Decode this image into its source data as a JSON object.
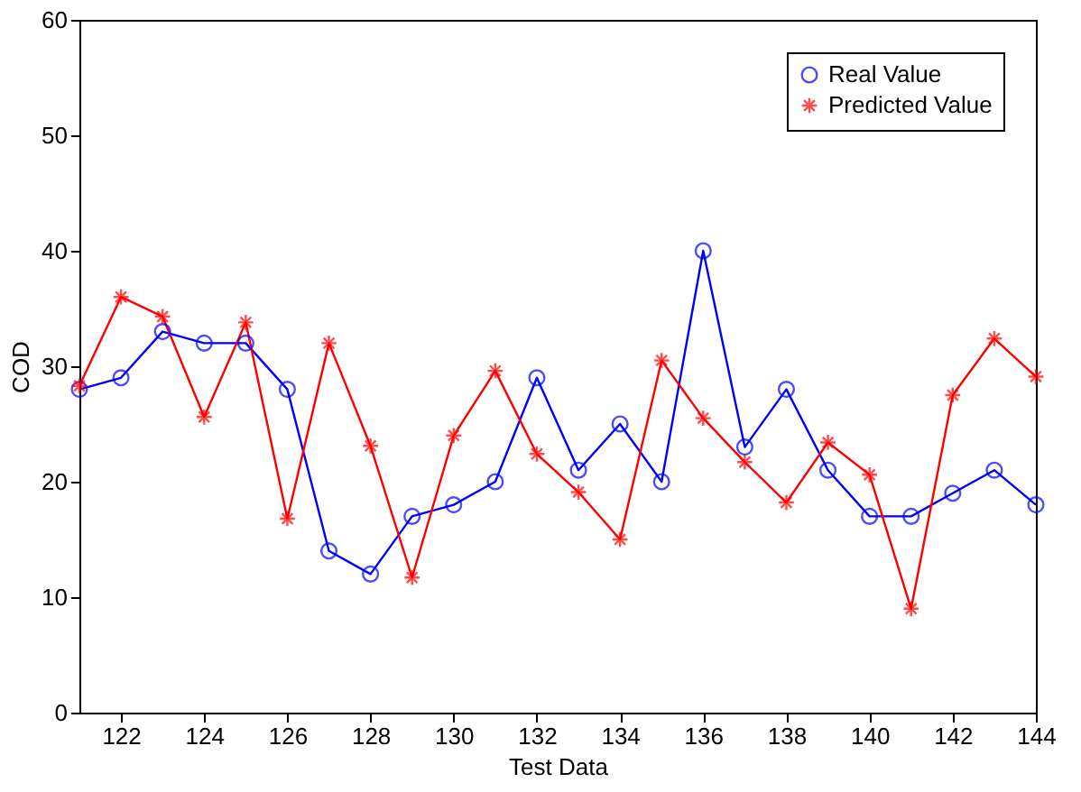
{
  "chart_data": {
    "type": "line",
    "xlabel": "Test Data",
    "ylabel": "COD",
    "x": [
      121,
      122,
      123,
      124,
      125,
      126,
      127,
      128,
      129,
      130,
      131,
      132,
      133,
      134,
      135,
      136,
      137,
      138,
      139,
      140,
      141,
      142,
      143,
      144
    ],
    "series": [
      {
        "name": "Real Value",
        "color": "#0000ff",
        "marker": "circle",
        "values": [
          28,
          29,
          33,
          32,
          32,
          28,
          14,
          12,
          17,
          18,
          20,
          29,
          21,
          25,
          20,
          40,
          23,
          28,
          21,
          17,
          17,
          19,
          21,
          18
        ]
      },
      {
        "name": "Predicted Value",
        "color": "#ff0000",
        "marker": "cross",
        "values": [
          28.3,
          36,
          34.3,
          25.6,
          33.8,
          16.8,
          32,
          23.1,
          11.7,
          24,
          29.6,
          22.4,
          19.1,
          15,
          30.5,
          25.5,
          21.7,
          18.2,
          23.4,
          20.6,
          9,
          27.5,
          32.4,
          29.1
        ]
      }
    ],
    "xlim": [
      121,
      144
    ],
    "xticks": [
      122,
      124,
      126,
      128,
      130,
      132,
      134,
      136,
      138,
      140,
      142,
      144
    ],
    "ylim": [
      0,
      60
    ],
    "yticks": [
      0,
      10,
      20,
      30,
      40,
      50,
      60
    ],
    "grid": false,
    "legend": "top right",
    "line_style": "solid"
  }
}
